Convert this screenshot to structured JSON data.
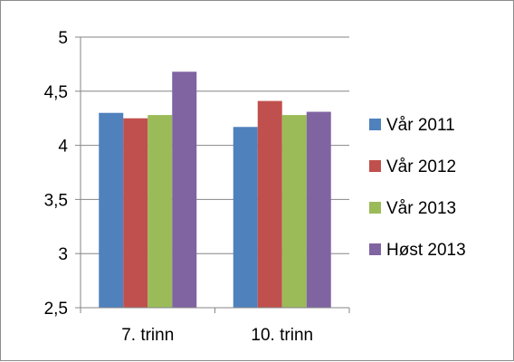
{
  "chart_data": {
    "type": "bar",
    "categories": [
      "7. trinn",
      "10. trinn"
    ],
    "series": [
      {
        "name": "Vår 2011",
        "color": "#4f81bd",
        "values": [
          4.3,
          4.17
        ]
      },
      {
        "name": "Vår 2012",
        "color": "#c0504d",
        "values": [
          4.25,
          4.41
        ]
      },
      {
        "name": "Vår 2013",
        "color": "#9bbb59",
        "values": [
          4.28,
          4.28
        ]
      },
      {
        "name": "Høst 2013",
        "color": "#8064a2",
        "values": [
          4.68,
          4.31
        ]
      }
    ],
    "yticks": [
      "2,5",
      "3",
      "3,5",
      "4",
      "4,5",
      "5"
    ],
    "ylim": [
      2.5,
      5
    ],
    "title": "",
    "xlabel": "",
    "ylabel": "",
    "grid": true,
    "legend_position": "right"
  }
}
